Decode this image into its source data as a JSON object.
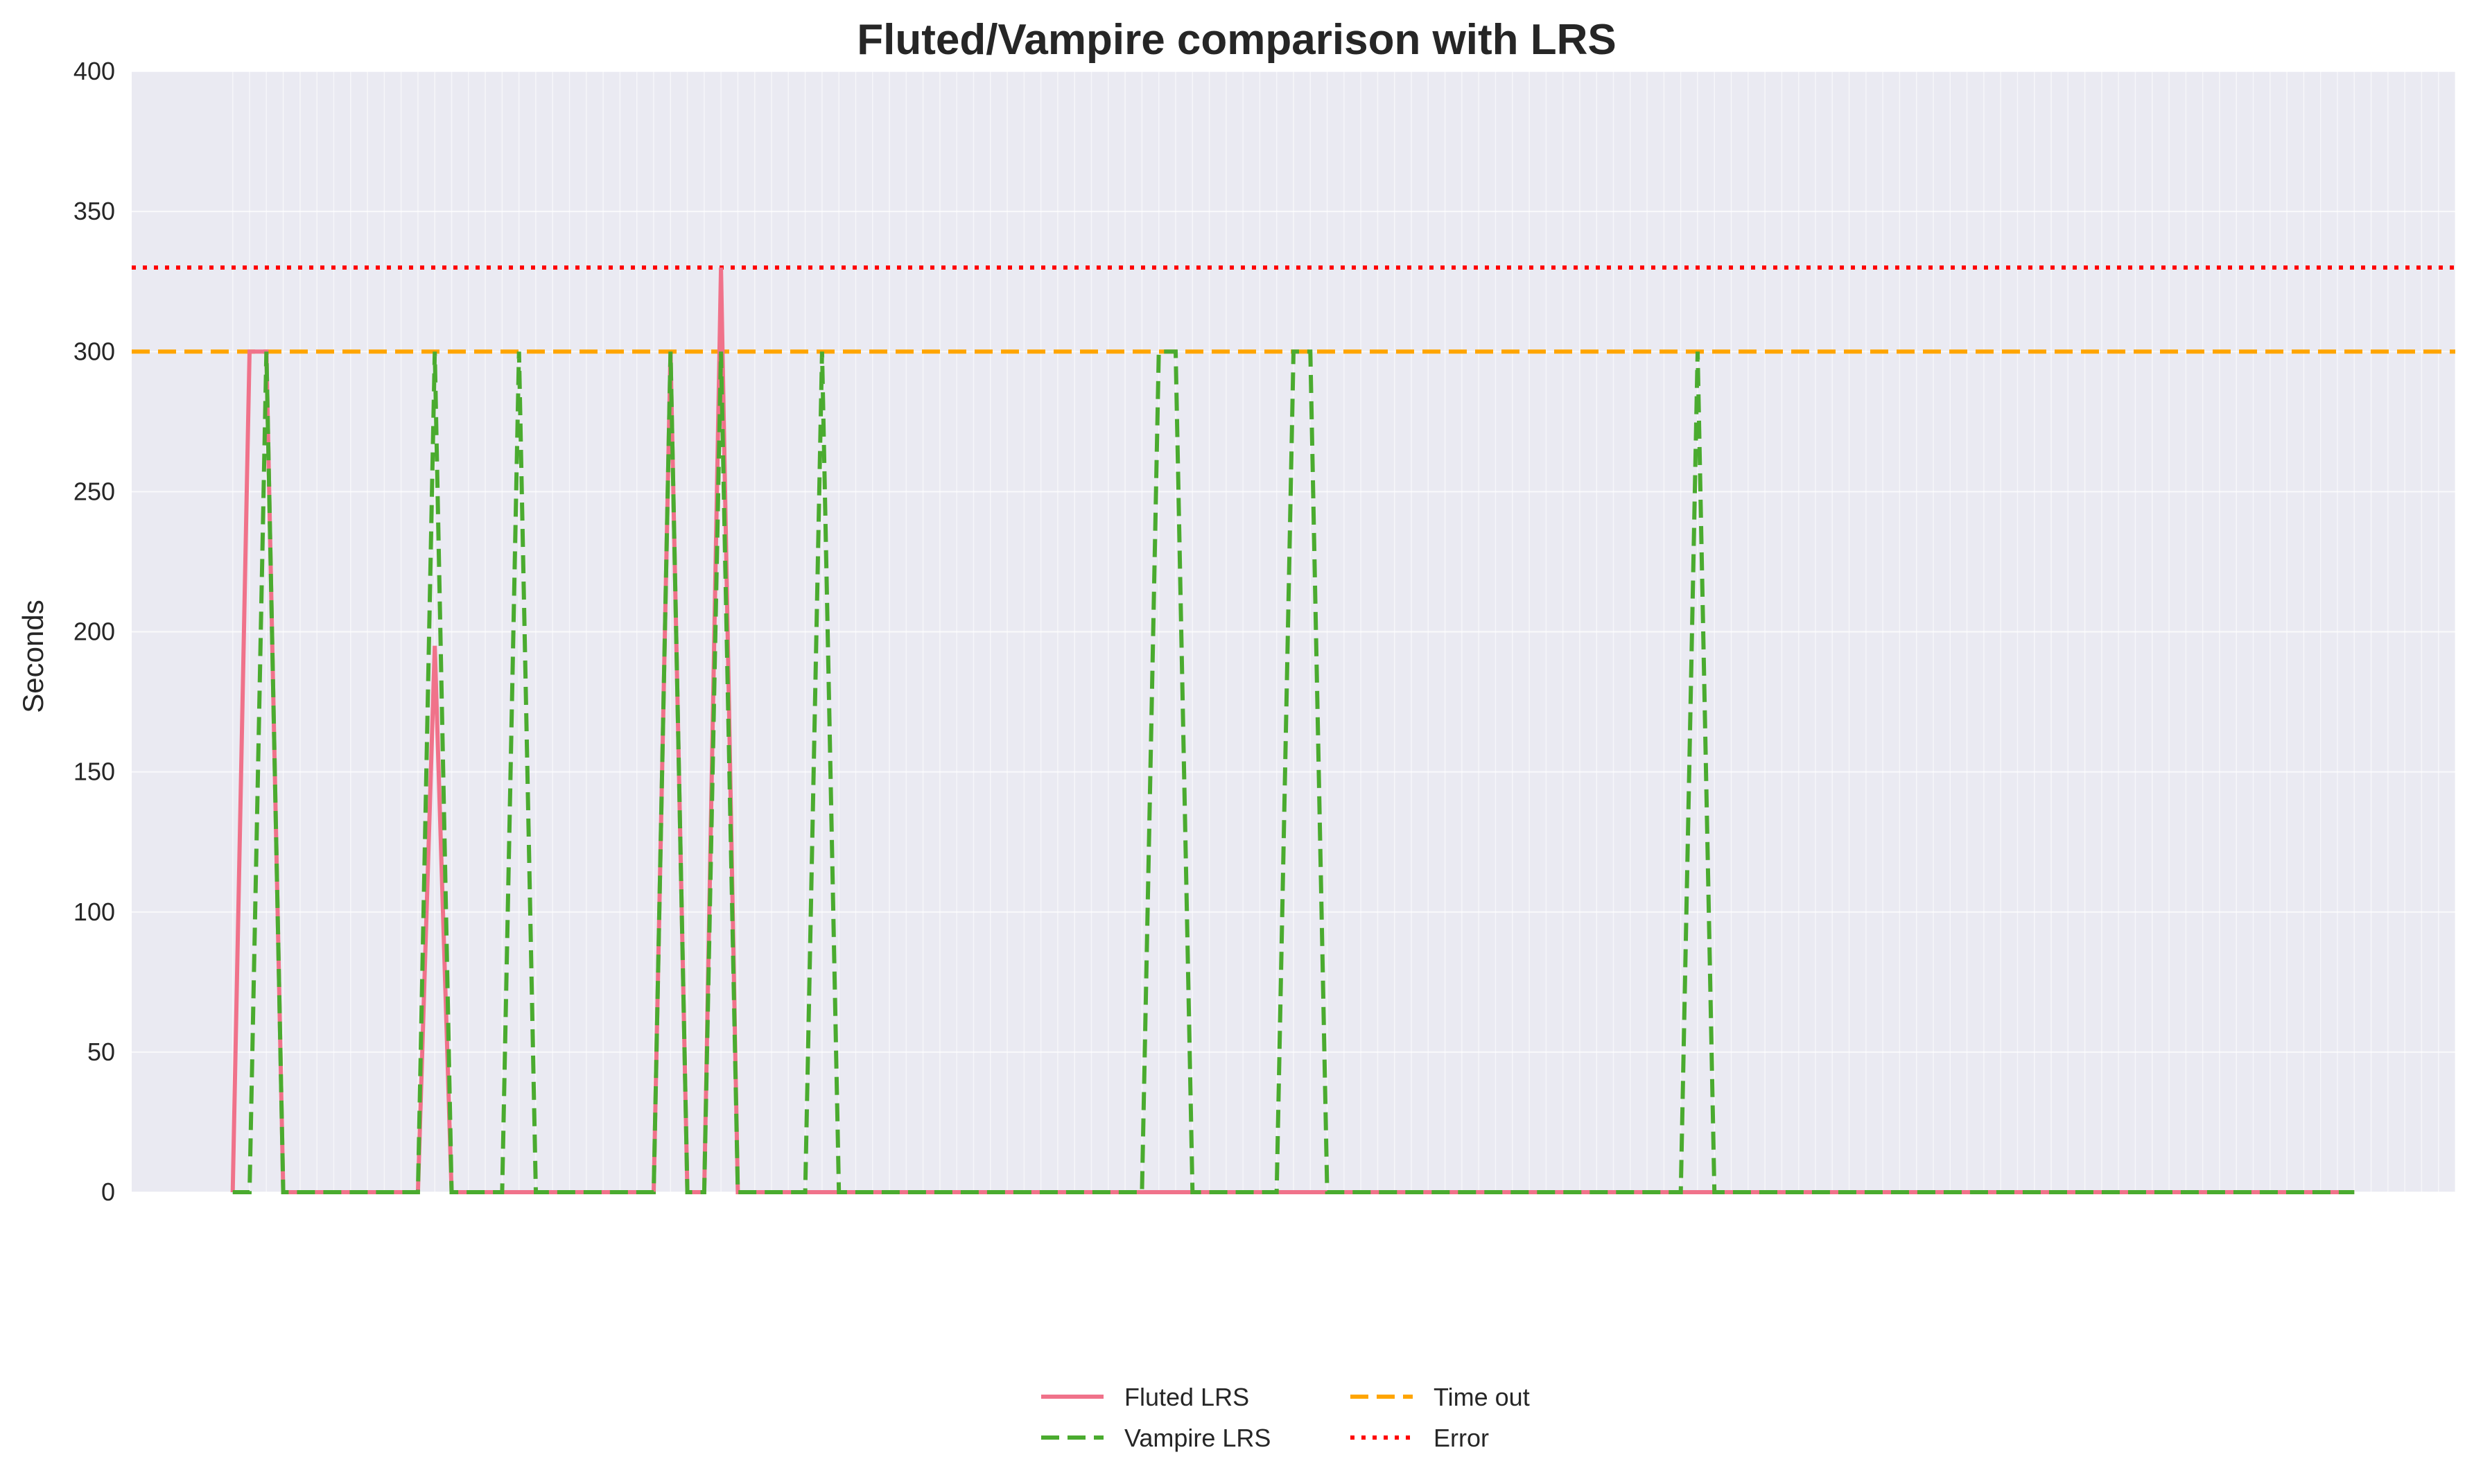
{
  "chart_data": {
    "type": "line",
    "title": "Fluted/Vampire comparison with LRS",
    "xlabel": "",
    "ylabel": "Seconds",
    "xlim": [
      -6,
      132
    ],
    "ylim": [
      0,
      400
    ],
    "yticks": [
      "0",
      "50",
      "100",
      "150",
      "200",
      "250",
      "300",
      "350",
      "400"
    ],
    "grid": true,
    "legend_position": "bottom-center",
    "n_points": 133,
    "series": [
      {
        "name": "Fluted LRS",
        "color": "#f0728a",
        "style": "solid",
        "points": [
          [
            0,
            0
          ],
          [
            1,
            300
          ],
          [
            2,
            300
          ],
          [
            3,
            0
          ],
          [
            11,
            0
          ],
          [
            12,
            195
          ],
          [
            13,
            0
          ],
          [
            25,
            0
          ],
          [
            26,
            300
          ],
          [
            27,
            0
          ],
          [
            28,
            0
          ],
          [
            29,
            330
          ],
          [
            30,
            0
          ],
          [
            126,
            0
          ]
        ]
      },
      {
        "name": "Vampire LRS",
        "color": "#4aab2f",
        "style": "dashed",
        "points": [
          [
            0,
            0
          ],
          [
            1,
            0
          ],
          [
            2,
            300
          ],
          [
            3,
            0
          ],
          [
            11,
            0
          ],
          [
            12,
            300
          ],
          [
            13,
            0
          ],
          [
            16,
            0
          ],
          [
            17,
            300
          ],
          [
            18,
            0
          ],
          [
            25,
            0
          ],
          [
            26,
            300
          ],
          [
            27,
            0
          ],
          [
            28,
            0
          ],
          [
            29,
            300
          ],
          [
            30,
            0
          ],
          [
            34,
            0
          ],
          [
            35,
            300
          ],
          [
            36,
            0
          ],
          [
            54,
            0
          ],
          [
            55,
            300
          ],
          [
            56,
            300
          ],
          [
            57,
            0
          ],
          [
            62,
            0
          ],
          [
            63,
            300
          ],
          [
            64,
            300
          ],
          [
            65,
            0
          ],
          [
            86,
            0
          ],
          [
            87,
            300
          ],
          [
            88,
            0
          ],
          [
            126,
            0
          ]
        ]
      }
    ],
    "reference_lines": [
      {
        "name": "Time out",
        "y": 300,
        "color": "#ffa500",
        "style": "dashed"
      },
      {
        "name": "Error",
        "y": 330,
        "color": "#ff0000",
        "style": "dotted"
      }
    ]
  }
}
